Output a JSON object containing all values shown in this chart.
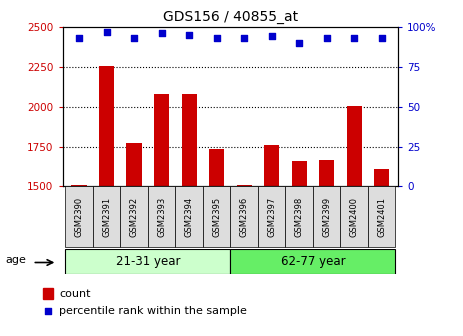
{
  "title": "GDS156 / 40855_at",
  "samples": [
    "GSM2390",
    "GSM2391",
    "GSM2392",
    "GSM2393",
    "GSM2394",
    "GSM2395",
    "GSM2396",
    "GSM2397",
    "GSM2398",
    "GSM2399",
    "GSM2400",
    "GSM2401"
  ],
  "counts": [
    1507,
    2258,
    1775,
    2080,
    2080,
    1737,
    1507,
    1757,
    1660,
    1665,
    2005,
    1608
  ],
  "percentile_ranks": [
    93,
    97,
    93,
    96,
    95,
    93,
    93,
    94,
    90,
    93,
    93,
    93
  ],
  "ylim_left": [
    1500,
    2500
  ],
  "ylim_right": [
    0,
    100
  ],
  "yticks_left": [
    1500,
    1750,
    2000,
    2250,
    2500
  ],
  "yticks_right": [
    0,
    25,
    50,
    75,
    100
  ],
  "bar_color": "#cc0000",
  "dot_color": "#0000cc",
  "group1_label": "21-31 year",
  "group1_count": 6,
  "group2_label": "62-77 year",
  "group2_count": 6,
  "group1_color": "#ccffcc",
  "group2_color": "#66ee66",
  "xtick_bg_color": "#dddddd",
  "age_label": "age",
  "legend_count_label": "count",
  "legend_pct_label": "percentile rank within the sample",
  "bar_color_left_axis": "#cc0000",
  "dot_color_right_axis": "#0000cc",
  "bar_bottom": 1500,
  "right_axis_pct_suffix": "100%"
}
